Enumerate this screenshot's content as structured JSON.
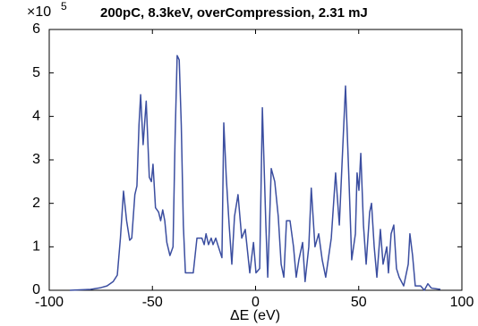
{
  "chart_data": {
    "type": "line",
    "title": "200pC, 8.3keV, overCompression, 2.31 mJ",
    "x_label": "ΔE (eV)",
    "y_offset_base": "×10",
    "y_offset_exponent": 5,
    "xlim": [
      -100,
      100
    ],
    "xticks": [
      -100,
      -50,
      0,
      50,
      100
    ],
    "ylim": [
      0,
      6
    ],
    "yticks": [
      0,
      1,
      2,
      3,
      4,
      5,
      6
    ],
    "color": "#3b4ea0",
    "x": [
      -90,
      -85,
      -80,
      -75,
      -72,
      -69,
      -67,
      -65.5,
      -64,
      -62.5,
      -61,
      -60,
      -58.5,
      -57.5,
      -56.5,
      -55.7,
      -54.5,
      -53,
      -51.5,
      -50.5,
      -49.7,
      -48.5,
      -47,
      -46,
      -45,
      -44,
      -43,
      -41.5,
      -40,
      -39,
      -38,
      -37,
      -36,
      -35,
      -34,
      -32,
      -30.2,
      -28.4,
      -26,
      -24.9,
      -24,
      -22.8,
      -21.5,
      -20.6,
      -19.3,
      -18,
      -16.3,
      -15.4,
      -14.2,
      -12.8,
      -11.5,
      -10.2,
      -8.5,
      -6.7,
      -5,
      -2.8,
      -1,
      0.2,
      2,
      3.3,
      5,
      5.9,
      7.6,
      9.3,
      11,
      12.4,
      13.7,
      15,
      16.7,
      18.4,
      19.7,
      21,
      22.8,
      24,
      25.8,
      27,
      28.8,
      30.6,
      32.3,
      34,
      36.7,
      38.8,
      40.6,
      41.9,
      43.6,
      45.3,
      46.6,
      48.4,
      49.2,
      50.1,
      51,
      52.3,
      53.6,
      55.3,
      56.2,
      57.5,
      58.8,
      60.5,
      61.8,
      63.6,
      64.4,
      65.7,
      67,
      68.3,
      69.6,
      71.8,
      74,
      74.8,
      76.1,
      77.4,
      80,
      81.8,
      83.5,
      85.2,
      89.6
    ],
    "y": [
      0.0,
      0.01,
      0.02,
      0.06,
      0.1,
      0.2,
      0.35,
      1.2,
      2.28,
      1.6,
      1.15,
      1.2,
      2.2,
      2.4,
      3.8,
      4.5,
      3.35,
      4.35,
      2.6,
      2.5,
      2.9,
      1.9,
      1.8,
      1.6,
      1.85,
      1.6,
      1.1,
      0.8,
      1.0,
      3.5,
      5.4,
      5.3,
      3.8,
      1.5,
      0.4,
      0.4,
      0.4,
      1.2,
      1.2,
      1.05,
      1.3,
      1.05,
      1.2,
      1.05,
      1.2,
      1.0,
      0.75,
      3.85,
      2.6,
      1.5,
      0.6,
      1.7,
      2.2,
      1.2,
      1.4,
      0.4,
      1.1,
      0.4,
      0.5,
      4.2,
      1.5,
      0.3,
      2.8,
      2.5,
      1.7,
      0.6,
      0.3,
      1.6,
      1.6,
      1.0,
      0.3,
      0.7,
      1.1,
      0.2,
      1.0,
      2.35,
      1.0,
      1.3,
      0.7,
      0.3,
      1.2,
      2.7,
      1.5,
      2.9,
      4.7,
      2.5,
      0.7,
      1.3,
      2.7,
      2.3,
      3.15,
      1.5,
      0.6,
      1.8,
      2.0,
      1.0,
      0.3,
      1.4,
      0.6,
      1.0,
      0.4,
      1.3,
      1.5,
      0.5,
      0.3,
      0.1,
      0.6,
      1.3,
      0.8,
      0.1,
      0.1,
      0.0,
      0.15,
      0.05,
      0.02
    ]
  }
}
